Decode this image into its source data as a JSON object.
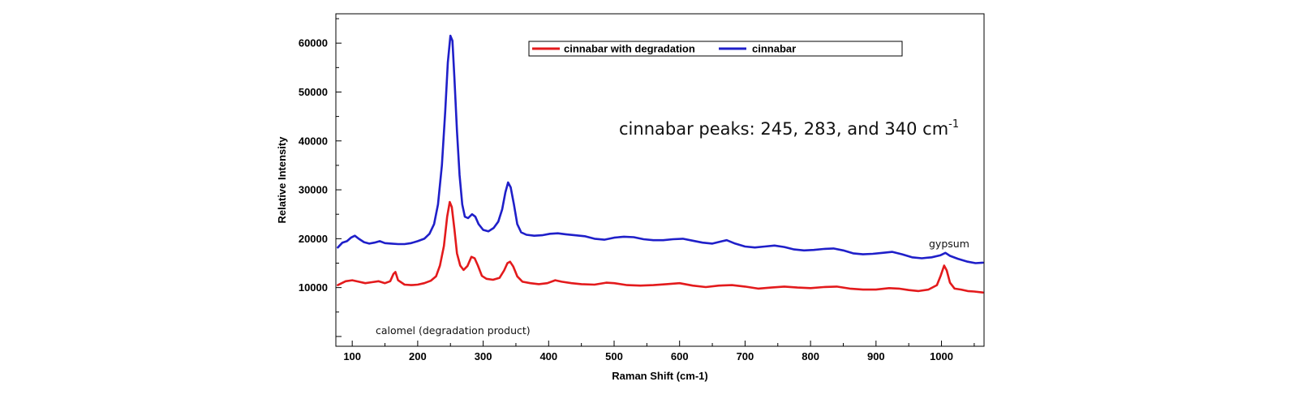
{
  "chart_data": {
    "type": "line",
    "title": "",
    "xlabel": "Raman Shift (cm-1)",
    "ylabel": "Relative Intensity",
    "xlim": [
      75,
      1065
    ],
    "ylim": [
      -2000,
      66000
    ],
    "x_ticks": [
      100,
      200,
      300,
      400,
      500,
      600,
      700,
      800,
      900,
      1000
    ],
    "y_ticks": [
      10000,
      20000,
      30000,
      40000,
      50000,
      60000
    ],
    "grid": false,
    "legend_position": "top-center",
    "series": [
      {
        "name": "cinnabar with degradation",
        "color": "#e31a1c",
        "points": [
          [
            78,
            10500
          ],
          [
            90,
            11300
          ],
          [
            100,
            11500
          ],
          [
            110,
            11200
          ],
          [
            120,
            10900
          ],
          [
            130,
            11100
          ],
          [
            140,
            11300
          ],
          [
            150,
            10900
          ],
          [
            158,
            11300
          ],
          [
            163,
            12800
          ],
          [
            166,
            13200
          ],
          [
            170,
            11500
          ],
          [
            180,
            10600
          ],
          [
            190,
            10500
          ],
          [
            200,
            10600
          ],
          [
            210,
            10900
          ],
          [
            220,
            11400
          ],
          [
            228,
            12300
          ],
          [
            234,
            14500
          ],
          [
            240,
            18500
          ],
          [
            245,
            24500
          ],
          [
            249,
            27500
          ],
          [
            252,
            26500
          ],
          [
            256,
            22000
          ],
          [
            260,
            17000
          ],
          [
            265,
            14500
          ],
          [
            270,
            13600
          ],
          [
            276,
            14400
          ],
          [
            282,
            16300
          ],
          [
            287,
            16000
          ],
          [
            292,
            14500
          ],
          [
            298,
            12400
          ],
          [
            305,
            11800
          ],
          [
            315,
            11600
          ],
          [
            325,
            12000
          ],
          [
            332,
            13500
          ],
          [
            337,
            15000
          ],
          [
            341,
            15300
          ],
          [
            346,
            14300
          ],
          [
            352,
            12300
          ],
          [
            360,
            11200
          ],
          [
            372,
            10900
          ],
          [
            385,
            10700
          ],
          [
            398,
            10900
          ],
          [
            410,
            11500
          ],
          [
            420,
            11200
          ],
          [
            435,
            10900
          ],
          [
            450,
            10700
          ],
          [
            470,
            10600
          ],
          [
            488,
            11000
          ],
          [
            500,
            10900
          ],
          [
            520,
            10500
          ],
          [
            540,
            10400
          ],
          [
            560,
            10500
          ],
          [
            580,
            10700
          ],
          [
            600,
            10900
          ],
          [
            620,
            10400
          ],
          [
            640,
            10100
          ],
          [
            660,
            10400
          ],
          [
            680,
            10500
          ],
          [
            700,
            10200
          ],
          [
            720,
            9800
          ],
          [
            740,
            10000
          ],
          [
            760,
            10200
          ],
          [
            780,
            10000
          ],
          [
            800,
            9900
          ],
          [
            820,
            10100
          ],
          [
            840,
            10200
          ],
          [
            860,
            9800
          ],
          [
            880,
            9600
          ],
          [
            900,
            9600
          ],
          [
            920,
            9900
          ],
          [
            935,
            9800
          ],
          [
            950,
            9500
          ],
          [
            965,
            9300
          ],
          [
            980,
            9600
          ],
          [
            993,
            10500
          ],
          [
            999,
            12500
          ],
          [
            1004,
            14500
          ],
          [
            1008,
            13500
          ],
          [
            1013,
            11000
          ],
          [
            1020,
            9800
          ],
          [
            1030,
            9600
          ],
          [
            1040,
            9300
          ],
          [
            1050,
            9200
          ],
          [
            1063,
            9000
          ]
        ]
      },
      {
        "name": "cinnabar",
        "color": "#1f1fc9",
        "points": [
          [
            78,
            18200
          ],
          [
            85,
            19200
          ],
          [
            92,
            19500
          ],
          [
            98,
            20200
          ],
          [
            104,
            20600
          ],
          [
            110,
            20000
          ],
          [
            118,
            19300
          ],
          [
            126,
            19000
          ],
          [
            134,
            19200
          ],
          [
            142,
            19500
          ],
          [
            150,
            19100
          ],
          [
            160,
            19000
          ],
          [
            170,
            18900
          ],
          [
            180,
            18900
          ],
          [
            190,
            19100
          ],
          [
            200,
            19500
          ],
          [
            210,
            20000
          ],
          [
            218,
            21000
          ],
          [
            225,
            23000
          ],
          [
            231,
            27000
          ],
          [
            237,
            35000
          ],
          [
            242,
            46000
          ],
          [
            246,
            56000
          ],
          [
            250,
            61500
          ],
          [
            253,
            60500
          ],
          [
            256,
            53000
          ],
          [
            260,
            42000
          ],
          [
            264,
            33000
          ],
          [
            268,
            27000
          ],
          [
            272,
            24500
          ],
          [
            277,
            24200
          ],
          [
            283,
            25000
          ],
          [
            288,
            24500
          ],
          [
            293,
            23000
          ],
          [
            300,
            21800
          ],
          [
            308,
            21500
          ],
          [
            316,
            22200
          ],
          [
            323,
            23500
          ],
          [
            329,
            26000
          ],
          [
            334,
            29500
          ],
          [
            338,
            31500
          ],
          [
            342,
            30500
          ],
          [
            347,
            27000
          ],
          [
            352,
            23000
          ],
          [
            358,
            21300
          ],
          [
            366,
            20800
          ],
          [
            378,
            20600
          ],
          [
            390,
            20700
          ],
          [
            402,
            21000
          ],
          [
            414,
            21100
          ],
          [
            426,
            20900
          ],
          [
            440,
            20700
          ],
          [
            455,
            20500
          ],
          [
            470,
            20000
          ],
          [
            485,
            19800
          ],
          [
            500,
            20200
          ],
          [
            515,
            20400
          ],
          [
            530,
            20300
          ],
          [
            545,
            19900
          ],
          [
            560,
            19700
          ],
          [
            575,
            19700
          ],
          [
            590,
            19900
          ],
          [
            605,
            20000
          ],
          [
            620,
            19600
          ],
          [
            635,
            19200
          ],
          [
            650,
            19000
          ],
          [
            662,
            19400
          ],
          [
            672,
            19700
          ],
          [
            685,
            19000
          ],
          [
            700,
            18400
          ],
          [
            715,
            18200
          ],
          [
            730,
            18400
          ],
          [
            745,
            18600
          ],
          [
            760,
            18300
          ],
          [
            775,
            17800
          ],
          [
            790,
            17600
          ],
          [
            805,
            17700
          ],
          [
            820,
            17900
          ],
          [
            835,
            18000
          ],
          [
            850,
            17600
          ],
          [
            865,
            17000
          ],
          [
            880,
            16800
          ],
          [
            895,
            16900
          ],
          [
            910,
            17100
          ],
          [
            925,
            17300
          ],
          [
            940,
            16800
          ],
          [
            955,
            16200
          ],
          [
            970,
            16000
          ],
          [
            985,
            16200
          ],
          [
            998,
            16600
          ],
          [
            1006,
            17100
          ],
          [
            1013,
            16500
          ],
          [
            1025,
            15900
          ],
          [
            1040,
            15300
          ],
          [
            1052,
            15000
          ],
          [
            1063,
            15100
          ]
        ]
      }
    ],
    "annotations": [
      {
        "text": "cinnabar peaks: 245, 283, and 340 cm",
        "superscript": "-1"
      },
      {
        "text": "gypsum"
      },
      {
        "text": "calomel (degradation product)"
      }
    ]
  }
}
